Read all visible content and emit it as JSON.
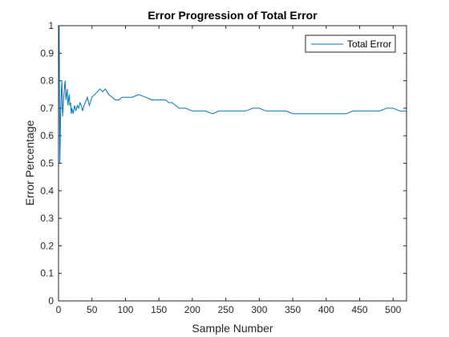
{
  "chart_data": {
    "type": "line",
    "title": "Error Progression of Total Error",
    "xlabel": "Sample Number",
    "ylabel": "Error Percentage",
    "xlim": [
      0,
      520
    ],
    "ylim": [
      0,
      1
    ],
    "xticks": [
      0,
      50,
      100,
      150,
      200,
      250,
      300,
      350,
      400,
      450,
      500
    ],
    "yticks": [
      0,
      0.1,
      0.2,
      0.3,
      0.4,
      0.5,
      0.6,
      0.7,
      0.8,
      0.9,
      1
    ],
    "xtick_labels": [
      "0",
      "50",
      "100",
      "150",
      "200",
      "250",
      "300",
      "350",
      "400",
      "450",
      "500"
    ],
    "ytick_labels": [
      "0",
      "0.1",
      "0.2",
      "0.3",
      "0.4",
      "0.5",
      "0.6",
      "0.7",
      "0.8",
      "0.9",
      "1"
    ],
    "grid": false,
    "legend_position": "top-right",
    "series": [
      {
        "name": "Total Error",
        "color": "#0072BD",
        "x": [
          1,
          2,
          3,
          4,
          5,
          6,
          7,
          8,
          9,
          10,
          11,
          12,
          13,
          14,
          15,
          16,
          17,
          18,
          19,
          20,
          22,
          24,
          26,
          28,
          30,
          32,
          34,
          36,
          38,
          40,
          43,
          46,
          50,
          54,
          58,
          62,
          66,
          70,
          75,
          80,
          85,
          90,
          95,
          100,
          110,
          120,
          130,
          140,
          150,
          160,
          165,
          170,
          175,
          180,
          190,
          200,
          210,
          220,
          230,
          240,
          250,
          260,
          270,
          280,
          290,
          300,
          310,
          320,
          330,
          340,
          350,
          360,
          370,
          380,
          390,
          400,
          410,
          420,
          430,
          440,
          450,
          460,
          470,
          480,
          490,
          500,
          510,
          520
        ],
        "y": [
          1.0,
          0.5,
          0.67,
          0.75,
          0.8,
          0.67,
          0.71,
          0.75,
          0.78,
          0.8,
          0.73,
          0.75,
          0.77,
          0.71,
          0.73,
          0.75,
          0.71,
          0.72,
          0.68,
          0.7,
          0.68,
          0.71,
          0.69,
          0.71,
          0.7,
          0.72,
          0.71,
          0.69,
          0.71,
          0.72,
          0.74,
          0.71,
          0.74,
          0.75,
          0.76,
          0.77,
          0.76,
          0.77,
          0.75,
          0.74,
          0.73,
          0.73,
          0.74,
          0.74,
          0.74,
          0.75,
          0.74,
          0.73,
          0.73,
          0.73,
          0.72,
          0.72,
          0.71,
          0.7,
          0.7,
          0.69,
          0.69,
          0.69,
          0.68,
          0.69,
          0.69,
          0.69,
          0.69,
          0.69,
          0.7,
          0.7,
          0.69,
          0.69,
          0.69,
          0.69,
          0.68,
          0.68,
          0.68,
          0.68,
          0.68,
          0.68,
          0.68,
          0.68,
          0.68,
          0.69,
          0.69,
          0.69,
          0.69,
          0.69,
          0.7,
          0.7,
          0.69,
          0.69
        ]
      }
    ]
  }
}
